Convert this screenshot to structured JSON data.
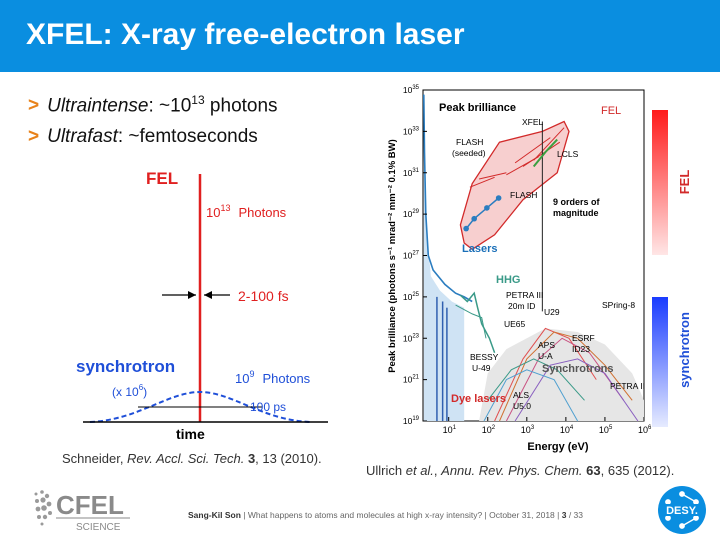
{
  "slide": {
    "title": "XFEL: X-ray free-electron laser",
    "bullets": [
      {
        "label": "Ultraintense",
        "rest_pre": ": ~10",
        "sup": "13",
        "rest_post": " photons"
      },
      {
        "label": "Ultrafast",
        "rest_pre": ": ~femtoseconds",
        "sup": "",
        "rest_post": ""
      }
    ],
    "left_citation": {
      "authors": "Schneider, ",
      "journal": "Rev. Accl. Sci. Tech.",
      "volume": " 3",
      "rest": ", 13 (2010)."
    },
    "right_citation": {
      "authors": "Ullrich ",
      "etal": "et al.",
      "sep": ", ",
      "journal": "Annu. Rev. Phys. Chem.",
      "volume": " 63",
      "rest": ", 635 (2012)."
    },
    "footer": {
      "author": "Sang-Kil Son",
      "text": "  |  What happens to atoms and molecules at high x-ray intensity?  |  October 31, 2018  |  ",
      "page": "3",
      "total": "  / 33"
    },
    "logos": {
      "cfel_main": "CFEL",
      "cfel_sub": "SCIENCE",
      "desy": "DESY."
    }
  },
  "left_figure": {
    "fel_label": "FEL",
    "fel_photons_base": "10",
    "fel_photons_exp": "13",
    "fel_photons_word": "Photons",
    "pulse_duration": "2-100 fs",
    "sync_label": "synchrotron",
    "sync_scale_base": "(x 10",
    "sync_scale_exp": "6",
    "sync_scale_close": ")",
    "sync_photons_base": "10",
    "sync_photons_exp": "9",
    "sync_photons_word": "Photons",
    "sync_duration": "100 ps",
    "x_axis_label": "time",
    "colors": {
      "fel": "#e02020",
      "sync": "#1f4fd8"
    }
  },
  "chart_data": {
    "type": "area",
    "title": "Peak brilliance",
    "xlabel": "Energy (eV)",
    "ylabel": "Peak brilliance (photons s⁻¹ mrad⁻² mm⁻² 0.1% BW)",
    "x_scale": "log",
    "y_scale": "log",
    "x_ticks": [
      {
        "value": 10,
        "base": "10",
        "exp": "1"
      },
      {
        "value": 100,
        "base": "10",
        "exp": "2"
      },
      {
        "value": 1000,
        "base": "10",
        "exp": "3"
      },
      {
        "value": 10000,
        "base": "10",
        "exp": "4"
      },
      {
        "value": 100000,
        "base": "10",
        "exp": "5"
      },
      {
        "value": 1000000,
        "base": "10",
        "exp": "6"
      }
    ],
    "y_ticks": [
      {
        "value": 1e+19,
        "base": "10",
        "exp": "19"
      },
      {
        "value": 1e+21,
        "base": "10",
        "exp": "21"
      },
      {
        "value": 1e+23,
        "base": "10",
        "exp": "23"
      },
      {
        "value": 1e+25,
        "base": "10",
        "exp": "25"
      },
      {
        "value": 1e+27,
        "base": "10",
        "exp": "27"
      },
      {
        "value": 1e+29,
        "base": "10",
        "exp": "29"
      },
      {
        "value": 1e+31,
        "base": "10",
        "exp": "31"
      },
      {
        "value": 1e+33,
        "base": "10",
        "exp": "33"
      },
      {
        "value": 1e+35,
        "base": "10",
        "exp": "35"
      }
    ],
    "xlim": [
      2.2,
      1000000
    ],
    "ylim": [
      1e+19,
      1e+35
    ],
    "annotations": {
      "fel": "FEL",
      "xfel": "XFEL",
      "flash_seeded_1": "FLASH",
      "flash_seeded_2": "(seeded)",
      "lcls": "LCLS",
      "flash": "FLASH",
      "orders_1": "9 orders of",
      "orders_2": "magnitude",
      "lasers": "Lasers",
      "hhg": "HHG",
      "petra3_1": "PETRA III",
      "petra3_2": "20m ID",
      "spring8": "SPring-8",
      "u29": "U29",
      "ue65": "UE65",
      "esrf_1": "ESRF",
      "esrf_2": "ID23",
      "aps_1": "APS",
      "aps_2": "U-A",
      "bessy_1": "BESSY",
      "bessy_2": "U-49",
      "synchrotrons": "Synchrotrons",
      "petra2": "PETRA II",
      "dye_lasers": "Dye lasers",
      "als_1": "ALS",
      "als_2": "U5.0"
    },
    "side_labels": {
      "fel": "FEL",
      "synchrotron": "synchrotron"
    },
    "series": [
      {
        "name": "FLASH",
        "points": [
          [
            28,
            2e+28
          ],
          [
            45,
            6e+28
          ],
          [
            95,
            2e+29
          ],
          [
            190,
            6e+29
          ]
        ]
      },
      {
        "name": "LCLS",
        "points": [
          [
            1500,
            2e+31
          ],
          [
            3000,
            1e+32
          ],
          [
            6000,
            4e+32
          ]
        ]
      },
      {
        "name": "Lasers",
        "points": [
          [
            2.3,
            1e+33
          ],
          [
            2.6,
            1e+27
          ],
          [
            3.0,
            1e+25
          ],
          [
            10,
            3e+23
          ]
        ]
      },
      {
        "name": "HHG",
        "points": [
          [
            20,
            1e+25
          ],
          [
            40,
            4e+24
          ],
          [
            60,
            2e+25
          ],
          [
            100,
            1e+23
          ],
          [
            150,
            2e+22
          ]
        ]
      },
      {
        "name": "Synchrotrons",
        "points": [
          [
            100,
            1e+21
          ],
          [
            1000,
            1e+23
          ],
          [
            10000,
            3e+23
          ],
          [
            100000,
            1e+22
          ],
          [
            1000000,
            1e+20
          ]
        ]
      }
    ],
    "colors": {
      "fel_region": "#f7cfcf",
      "fel_outline": "#d22a2a",
      "laser": "#2b7dc0",
      "laser_fill": "#cfe3f4",
      "hhg": "#3a9a88",
      "sync_fill": "#e6e6e6",
      "lcls": "#3aa040",
      "label_red": "#d22a2a",
      "label_blue": "#1a6fb8"
    }
  }
}
